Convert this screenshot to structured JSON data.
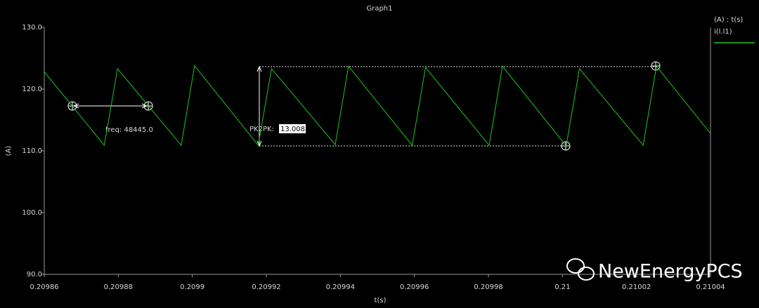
{
  "chart_data": {
    "type": "line",
    "title": "Graph1",
    "legend_title": "(A) : t(s)",
    "x_label": "t(s)",
    "y_label": "(A)",
    "x": [
      0.20986,
      0.2098762,
      0.2098798,
      0.209897,
      0.2099006,
      0.2099178,
      0.2099214,
      0.2099386,
      0.2099422,
      0.2099594,
      0.209963,
      0.2099802,
      0.2099838,
      0.210001,
      0.2100046,
      0.2100218,
      0.2100254,
      0.21004
    ],
    "series": [
      {
        "name": "i(l.l1)",
        "color": "#1fc41f",
        "values": [
          122.8,
          110.9,
          123.3,
          110.9,
          123.8,
          110.9,
          123.3,
          111.0,
          123.7,
          110.9,
          123.5,
          110.9,
          123.7,
          110.8,
          123.3,
          110.9,
          123.7,
          112.8
        ]
      }
    ],
    "xlim": [
      0.20986,
      0.21004
    ],
    "xticks": [
      0.20986,
      0.20988,
      0.2099,
      0.20992,
      0.20994,
      0.20996,
      0.20998,
      0.21,
      0.21002,
      0.21004
    ],
    "ylim": [
      90,
      130
    ],
    "yticks": [
      {
        "value": 90,
        "label": "90.0"
      },
      {
        "value": 100,
        "label": "100.0"
      },
      {
        "value": 110,
        "label": "110.0"
      },
      {
        "value": 120,
        "label": "120.0"
      },
      {
        "value": 130,
        "label": "130.0"
      }
    ],
    "grid": false,
    "annotations": {
      "freq": "freq: 48445.0",
      "pk2pk_label": "PK2PK:",
      "pk2pk_value": 13.008
    },
    "watermark": "NewEnergyPCS"
  }
}
